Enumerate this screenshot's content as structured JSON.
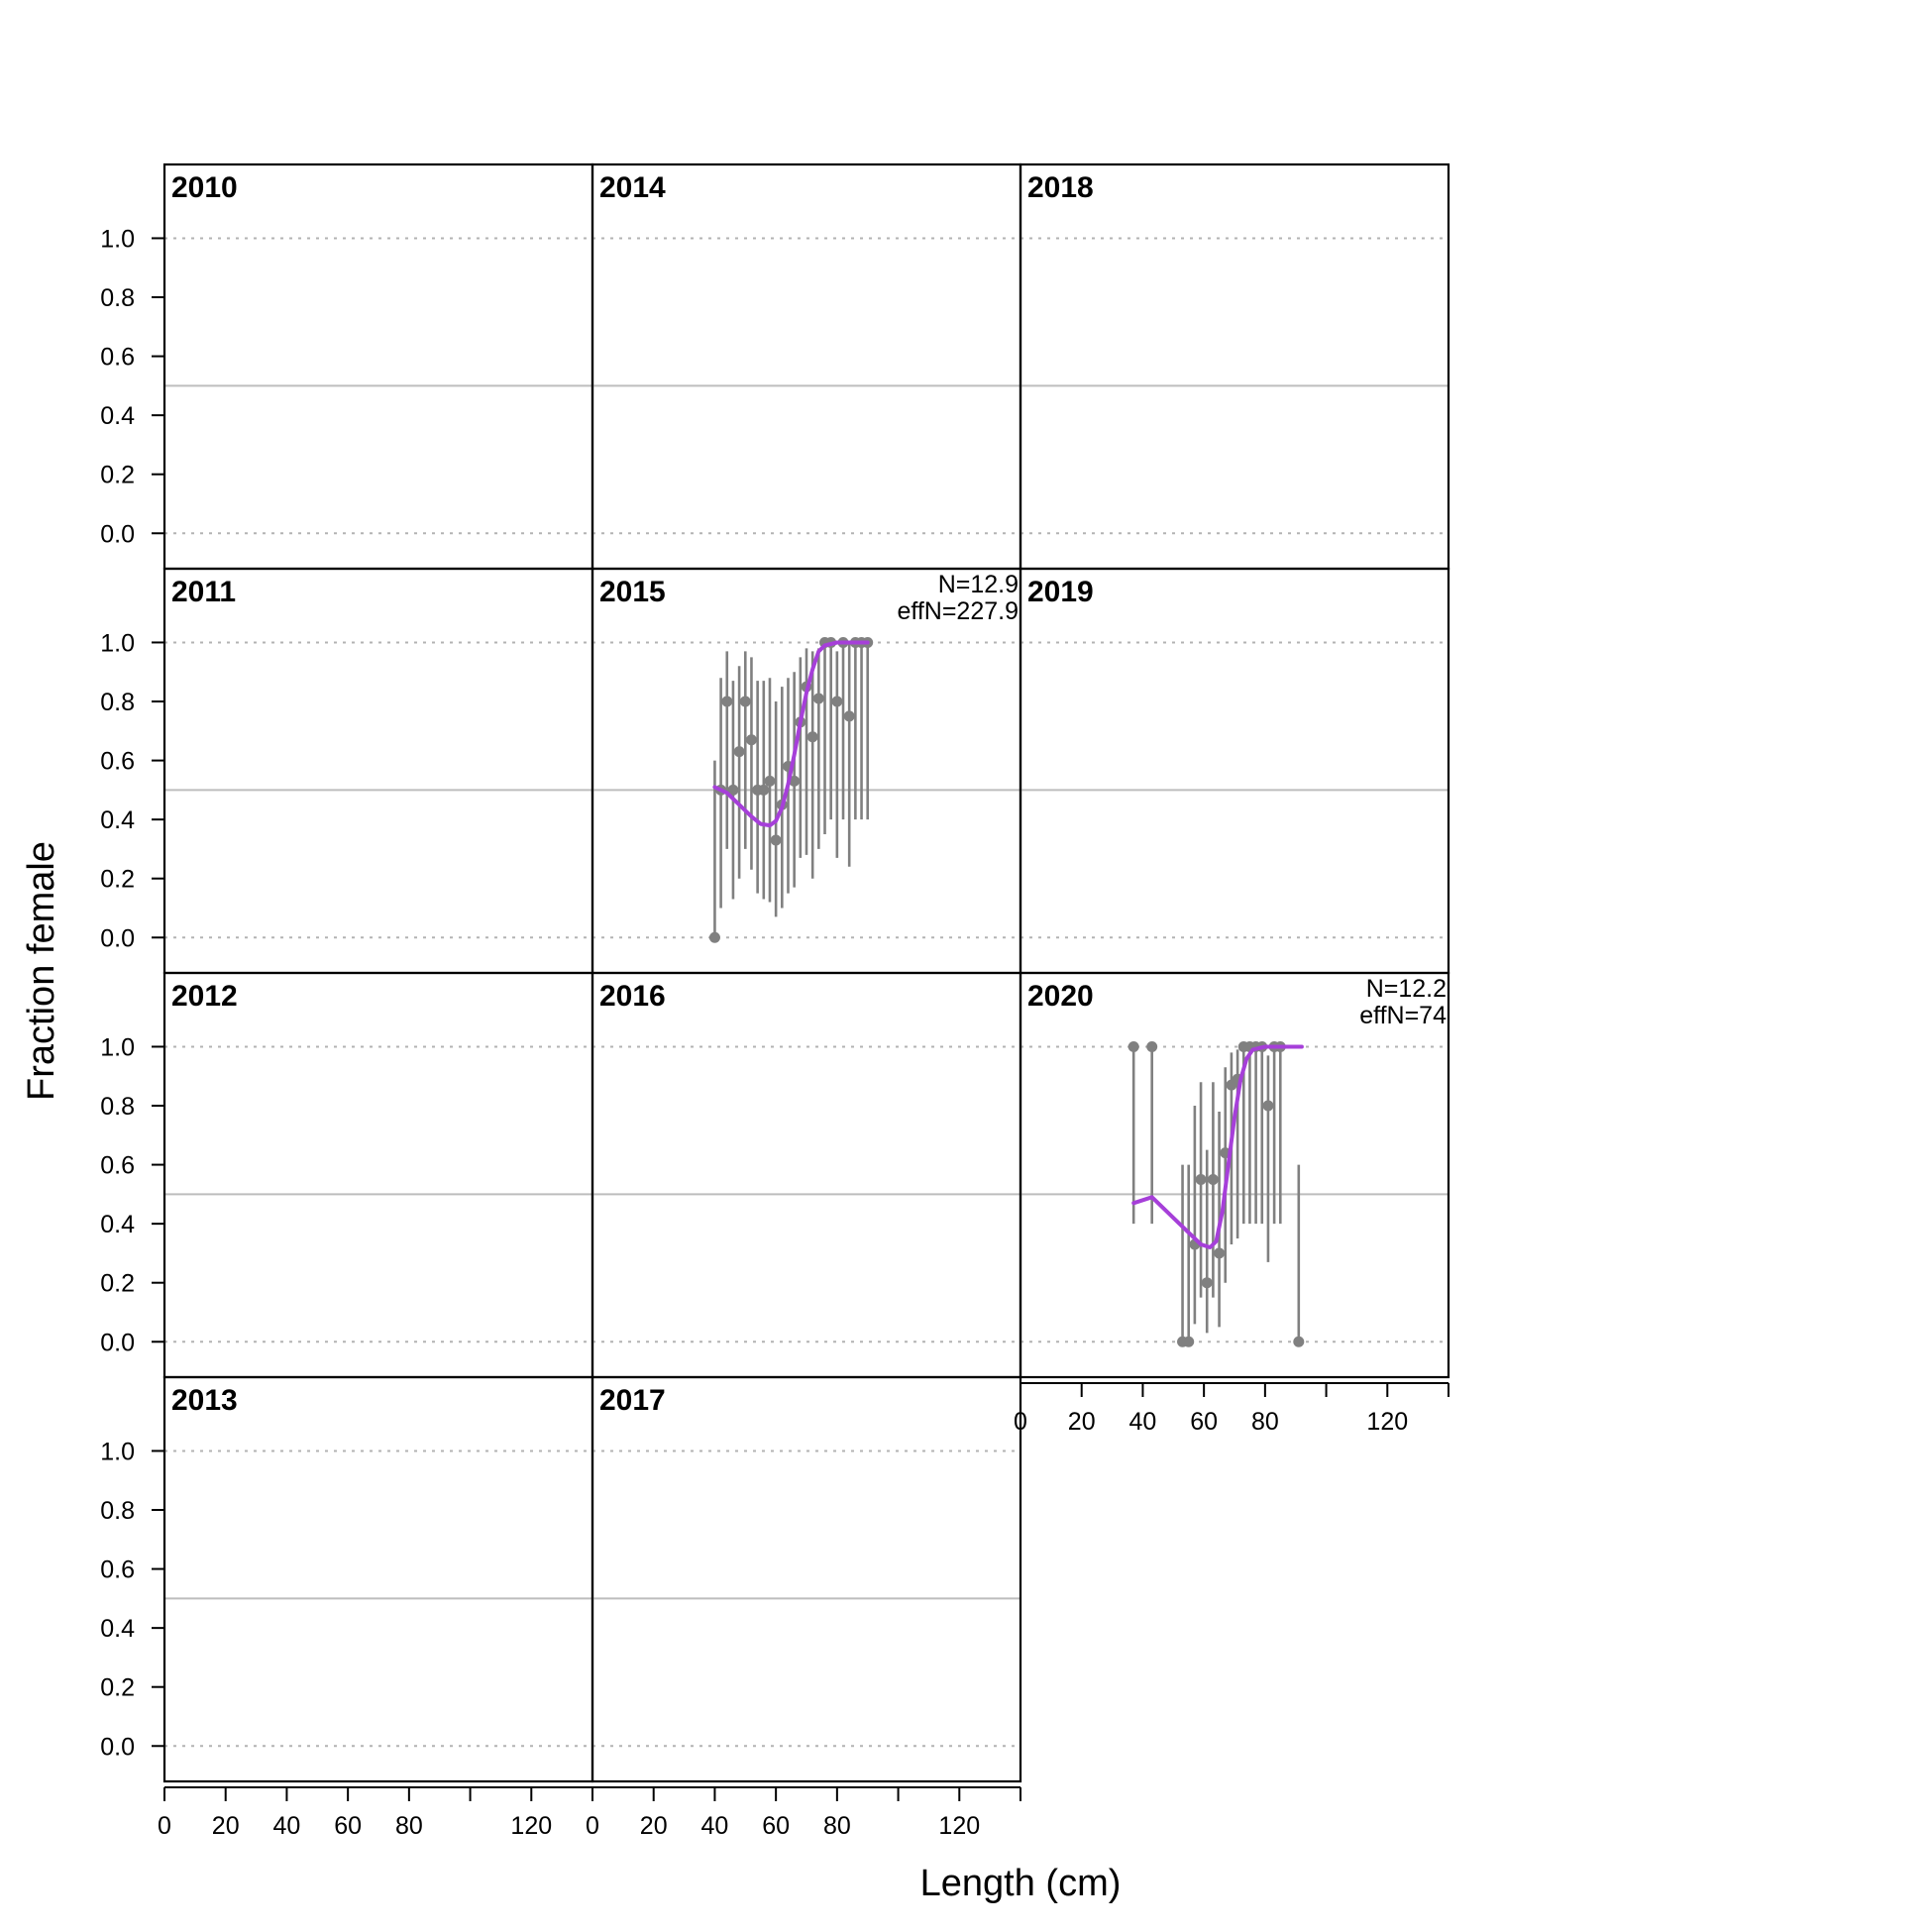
{
  "chart_data": {
    "type": "scatter",
    "xlabel": "Length (cm)",
    "ylabel": "Fraction female",
    "xlim": [
      0,
      140
    ],
    "ylim": [
      -0.12,
      1.25
    ],
    "x_ticks": [
      0,
      20,
      40,
      60,
      80,
      100,
      120,
      140
    ],
    "x_tick_labels": [
      "0",
      "20",
      "40",
      "60",
      "80",
      "",
      "120",
      ""
    ],
    "y_ticks": [
      0,
      0.2,
      0.4,
      0.6,
      0.8,
      1.0
    ],
    "y_tick_labels": [
      "0.0",
      "0.2",
      "0.4",
      "0.6",
      "0.8",
      "1.0"
    ],
    "reference_line": 0.5,
    "dotted_lines": [
      0,
      1
    ],
    "colors": {
      "points": "#808080",
      "fit": "#a63fd9",
      "reference": "#bdbdbd",
      "dotted": "#b3b3b3"
    },
    "panels": [
      {
        "year": "2010",
        "row": 0,
        "col": 0,
        "points": [],
        "fit": []
      },
      {
        "year": "2011",
        "row": 1,
        "col": 0,
        "points": [],
        "fit": []
      },
      {
        "year": "2012",
        "row": 2,
        "col": 0,
        "points": [],
        "fit": []
      },
      {
        "year": "2013",
        "row": 3,
        "col": 0,
        "points": [],
        "fit": []
      },
      {
        "year": "2014",
        "row": 0,
        "col": 1,
        "points": [],
        "fit": []
      },
      {
        "year": "2015",
        "row": 1,
        "col": 1,
        "annotation": [
          "N=12.9",
          "effN=227.9"
        ],
        "points": [
          {
            "x": 40,
            "y": 0.0,
            "lo": 0.0,
            "hi": 0.6
          },
          {
            "x": 42,
            "y": 0.5,
            "lo": 0.1,
            "hi": 0.88
          },
          {
            "x": 44,
            "y": 0.8,
            "lo": 0.3,
            "hi": 0.97
          },
          {
            "x": 46,
            "y": 0.5,
            "lo": 0.13,
            "hi": 0.87
          },
          {
            "x": 48,
            "y": 0.63,
            "lo": 0.2,
            "hi": 0.92
          },
          {
            "x": 50,
            "y": 0.8,
            "lo": 0.3,
            "hi": 0.97
          },
          {
            "x": 52,
            "y": 0.67,
            "lo": 0.23,
            "hi": 0.95
          },
          {
            "x": 54,
            "y": 0.5,
            "lo": 0.15,
            "hi": 0.87
          },
          {
            "x": 56,
            "y": 0.5,
            "lo": 0.13,
            "hi": 0.87
          },
          {
            "x": 58,
            "y": 0.53,
            "lo": 0.12,
            "hi": 0.88
          },
          {
            "x": 60,
            "y": 0.33,
            "lo": 0.07,
            "hi": 0.8
          },
          {
            "x": 62,
            "y": 0.45,
            "lo": 0.1,
            "hi": 0.85
          },
          {
            "x": 64,
            "y": 0.58,
            "lo": 0.15,
            "hi": 0.88
          },
          {
            "x": 66,
            "y": 0.53,
            "lo": 0.17,
            "hi": 0.9
          },
          {
            "x": 68,
            "y": 0.73,
            "lo": 0.27,
            "hi": 0.95
          },
          {
            "x": 70,
            "y": 0.85,
            "lo": 0.28,
            "hi": 0.98
          },
          {
            "x": 72,
            "y": 0.68,
            "lo": 0.2,
            "hi": 0.97
          },
          {
            "x": 74,
            "y": 0.81,
            "lo": 0.3,
            "hi": 0.98
          },
          {
            "x": 76,
            "y": 1.0,
            "lo": 0.35,
            "hi": 1.0
          },
          {
            "x": 78,
            "y": 1.0,
            "lo": 0.4,
            "hi": 1.0
          },
          {
            "x": 80,
            "y": 0.8,
            "lo": 0.27,
            "hi": 0.97
          },
          {
            "x": 82,
            "y": 1.0,
            "lo": 0.4,
            "hi": 1.0
          },
          {
            "x": 84,
            "y": 0.75,
            "lo": 0.24,
            "hi": 1.0
          },
          {
            "x": 86,
            "y": 1.0,
            "lo": 0.4,
            "hi": 1.0
          },
          {
            "x": 88,
            "y": 1.0,
            "lo": 0.4,
            "hi": 1.0
          },
          {
            "x": 90,
            "y": 1.0,
            "lo": 0.4,
            "hi": 1.0
          }
        ],
        "fit": [
          [
            40,
            0.51
          ],
          [
            44,
            0.49
          ],
          [
            48,
            0.45
          ],
          [
            52,
            0.41
          ],
          [
            55,
            0.385
          ],
          [
            58,
            0.38
          ],
          [
            60,
            0.395
          ],
          [
            62,
            0.44
          ],
          [
            64,
            0.52
          ],
          [
            66,
            0.62
          ],
          [
            68,
            0.73
          ],
          [
            70,
            0.83
          ],
          [
            72,
            0.91
          ],
          [
            74,
            0.97
          ],
          [
            76,
            0.99
          ],
          [
            80,
            1.0
          ],
          [
            90,
            1.0
          ]
        ]
      },
      {
        "year": "2016",
        "row": 2,
        "col": 1,
        "points": [],
        "fit": []
      },
      {
        "year": "2017",
        "row": 3,
        "col": 1,
        "points": [],
        "fit": []
      },
      {
        "year": "2018",
        "row": 0,
        "col": 2,
        "points": [],
        "fit": []
      },
      {
        "year": "2019",
        "row": 1,
        "col": 2,
        "points": [],
        "fit": []
      },
      {
        "year": "2020",
        "row": 2,
        "col": 2,
        "annotation": [
          "N=12.2",
          "effN=74"
        ],
        "points": [
          {
            "x": 37,
            "y": 1.0,
            "lo": 0.4,
            "hi": 1.0
          },
          {
            "x": 43,
            "y": 1.0,
            "lo": 0.4,
            "hi": 1.0
          },
          {
            "x": 53,
            "y": 0.0,
            "lo": 0.0,
            "hi": 0.6
          },
          {
            "x": 55,
            "y": 0.0,
            "lo": 0.0,
            "hi": 0.6
          },
          {
            "x": 57,
            "y": 0.33,
            "lo": 0.06,
            "hi": 0.8
          },
          {
            "x": 59,
            "y": 0.55,
            "lo": 0.15,
            "hi": 0.88
          },
          {
            "x": 61,
            "y": 0.2,
            "lo": 0.03,
            "hi": 0.65
          },
          {
            "x": 63,
            "y": 0.55,
            "lo": 0.15,
            "hi": 0.88
          },
          {
            "x": 65,
            "y": 0.3,
            "lo": 0.05,
            "hi": 0.78
          },
          {
            "x": 67,
            "y": 0.64,
            "lo": 0.2,
            "hi": 0.93
          },
          {
            "x": 69,
            "y": 0.87,
            "lo": 0.33,
            "hi": 0.98
          },
          {
            "x": 71,
            "y": 0.89,
            "lo": 0.35,
            "hi": 0.99
          },
          {
            "x": 73,
            "y": 1.0,
            "lo": 0.4,
            "hi": 1.0
          },
          {
            "x": 75,
            "y": 1.0,
            "lo": 0.4,
            "hi": 1.0
          },
          {
            "x": 77,
            "y": 1.0,
            "lo": 0.4,
            "hi": 1.0
          },
          {
            "x": 79,
            "y": 1.0,
            "lo": 0.4,
            "hi": 1.0
          },
          {
            "x": 81,
            "y": 0.8,
            "lo": 0.27,
            "hi": 0.97
          },
          {
            "x": 83,
            "y": 1.0,
            "lo": 0.4,
            "hi": 1.0
          },
          {
            "x": 85,
            "y": 1.0,
            "lo": 0.4,
            "hi": 1.0
          },
          {
            "x": 91,
            "y": 0.0,
            "lo": 0.0,
            "hi": 0.6
          }
        ],
        "fit": [
          [
            37,
            0.47
          ],
          [
            43,
            0.49
          ],
          [
            47,
            0.45
          ],
          [
            51,
            0.41
          ],
          [
            55,
            0.37
          ],
          [
            59,
            0.33
          ],
          [
            62,
            0.32
          ],
          [
            64,
            0.34
          ],
          [
            66,
            0.44
          ],
          [
            68,
            0.6
          ],
          [
            70,
            0.76
          ],
          [
            72,
            0.89
          ],
          [
            74,
            0.96
          ],
          [
            76,
            0.99
          ],
          [
            80,
            1.0
          ],
          [
            92,
            1.0
          ]
        ]
      }
    ]
  }
}
